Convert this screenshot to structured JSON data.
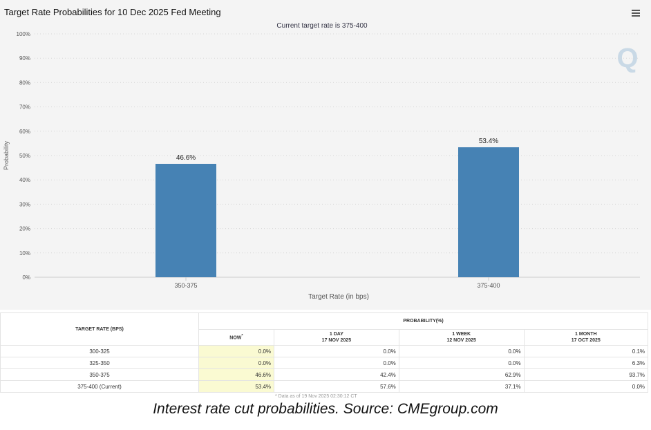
{
  "chart_data": {
    "type": "bar",
    "title": "Target Rate Probabilities for 10 Dec 2025 Fed Meeting",
    "subtitle": "Current target rate is 375-400",
    "categories": [
      "350-375",
      "375-400"
    ],
    "values": [
      46.6,
      53.4
    ],
    "data_labels": [
      "46.6%",
      "53.4%"
    ],
    "xlabel": "Target Rate (in bps)",
    "ylabel": "Probability",
    "ylim": [
      0,
      100
    ],
    "y_ticks": [
      "0%",
      "10%",
      "20%",
      "30%",
      "40%",
      "50%",
      "60%",
      "70%",
      "80%",
      "90%",
      "100%"
    ],
    "grid": true,
    "bar_color": "#4682b4"
  },
  "table": {
    "rate_header": "TARGET RATE (BPS)",
    "prob_header": "PROBABILITY(%)",
    "columns": [
      {
        "label": "NOW",
        "sup": "*",
        "date": ""
      },
      {
        "label": "1 DAY",
        "sup": "",
        "date": "17 NOV 2025"
      },
      {
        "label": "1 WEEK",
        "sup": "",
        "date": "12 NOV 2025"
      },
      {
        "label": "1 MONTH",
        "sup": "",
        "date": "17 OCT 2025"
      }
    ],
    "rows": [
      {
        "rate": "300-325",
        "values": [
          "0.0%",
          "0.0%",
          "0.0%",
          "0.1%"
        ]
      },
      {
        "rate": "325-350",
        "values": [
          "0.0%",
          "0.0%",
          "0.0%",
          "6.3%"
        ]
      },
      {
        "rate": "350-375",
        "values": [
          "46.6%",
          "42.4%",
          "62.9%",
          "93.7%"
        ]
      },
      {
        "rate": "375-400 (Current)",
        "values": [
          "53.4%",
          "57.6%",
          "37.1%",
          "0.0%"
        ]
      }
    ],
    "note": "* Data as of 19 Nov 2025 02:30:12 CT"
  },
  "watermark": "Q",
  "caption": "Interest rate cut probabilities. Source: CMEgroup.com"
}
